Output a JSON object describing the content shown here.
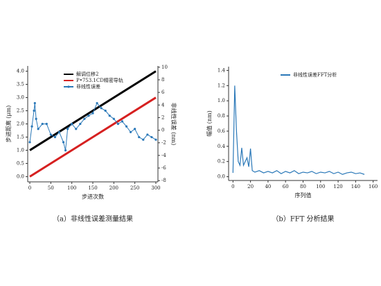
{
  "chart_data": [
    {
      "type": "line",
      "caption": "（a）非线性误差测量结果",
      "xlabel": "步进次数",
      "ylabel": "步进距离 (μm)",
      "y2label": "非线性误差 (nm)",
      "xlim": [
        -5,
        305
      ],
      "xticks": [
        0,
        50,
        100,
        150,
        200,
        250,
        300
      ],
      "ylim": [
        -0.2,
        4.2
      ],
      "yticks": [
        {
          "value": 0,
          "label": "0.0"
        },
        {
          "value": 0.5,
          "label": "0.5"
        },
        {
          "value": 1,
          "label": "1.0"
        },
        {
          "value": 1.5,
          "label": "1.5"
        },
        {
          "value": 2,
          "label": "2.0"
        },
        {
          "value": 2.5,
          "label": "2.5"
        },
        {
          "value": 3,
          "label": "3.0"
        },
        {
          "value": 3.5,
          "label": "3.5"
        },
        {
          "value": 4,
          "label": "4.0"
        }
      ],
      "y2lim": [
        -8.2,
        10.2
      ],
      "y2ticks": [
        -8,
        -6,
        -4,
        -2,
        0,
        2,
        4,
        6,
        8,
        10
      ],
      "legend": "upper-left",
      "series": [
        {
          "name": "解调位移2",
          "color": "#000000",
          "x": [
            0,
            300
          ],
          "values": [
            1.0,
            4.0
          ]
        },
        {
          "name": "P•753.1CD精密导轨",
          "color": "#d62020",
          "x": [
            0,
            300
          ],
          "values": [
            0.0,
            3.0
          ]
        },
        {
          "name": "非线性误差",
          "color": "#2a78b8",
          "axis": "y2",
          "markers": true,
          "x": [
            0,
            5,
            10,
            12,
            15,
            20,
            30,
            40,
            50,
            60,
            70,
            80,
            85,
            90,
            100,
            110,
            120,
            130,
            140,
            150,
            160,
            170,
            180,
            190,
            200,
            210,
            220,
            230,
            240,
            250,
            260,
            270,
            280,
            290,
            300
          ],
          "values": [
            -1.9,
            0.6,
            3.1,
            4.3,
            1.8,
            0.2,
            1.0,
            1.0,
            -0.7,
            -1.1,
            -0.3,
            -1.9,
            -3.2,
            0.2,
            1.0,
            0.2,
            1.0,
            1.8,
            2.3,
            2.7,
            4.3,
            3.5,
            3.1,
            2.3,
            1.8,
            1.0,
            1.4,
            0.6,
            -0.3,
            0.2,
            -1.1,
            -1.5,
            -0.7,
            -1.1,
            -1.5
          ]
        }
      ]
    },
    {
      "type": "line",
      "caption": "（b）FFT 分析结果",
      "xlabel": "序列值",
      "ylabel": "幅值 (nm)",
      "xlim": [
        -5,
        165
      ],
      "xticks": [
        0,
        20,
        40,
        60,
        80,
        100,
        120,
        140,
        160
      ],
      "ylim": [
        -0.05,
        1.45
      ],
      "yticks": [
        {
          "value": 0,
          "label": "0.0"
        },
        {
          "value": 0.2,
          "label": "0.2"
        },
        {
          "value": 0.4,
          "label": "0.4"
        },
        {
          "value": 0.6,
          "label": "0.6"
        },
        {
          "value": 0.8,
          "label": "0.8"
        },
        {
          "value": 1,
          "label": "1.0"
        },
        {
          "value": 1.2,
          "label": "1.2"
        },
        {
          "value": 1.4,
          "label": "1.4"
        }
      ],
      "legend": "upper-right",
      "series": [
        {
          "name": "非线性误差FFT分析",
          "color": "#2a78b8",
          "x": [
            0,
            2,
            4,
            6,
            8,
            10,
            12,
            14,
            16,
            18,
            20,
            22,
            25,
            30,
            35,
            40,
            45,
            50,
            55,
            60,
            65,
            70,
            75,
            80,
            85,
            90,
            95,
            100,
            105,
            110,
            115,
            120,
            125,
            130,
            135,
            140,
            145,
            150
          ],
          "values": [
            0.05,
            1.2,
            0.6,
            0.2,
            0.15,
            0.38,
            0.15,
            0.2,
            0.25,
            0.13,
            0.37,
            0.08,
            0.06,
            0.08,
            0.05,
            0.07,
            0.05,
            0.08,
            0.04,
            0.07,
            0.05,
            0.08,
            0.04,
            0.06,
            0.05,
            0.07,
            0.04,
            0.06,
            0.05,
            0.07,
            0.04,
            0.06,
            0.03,
            0.05,
            0.06,
            0.04,
            0.05,
            0.03
          ]
        }
      ]
    }
  ]
}
